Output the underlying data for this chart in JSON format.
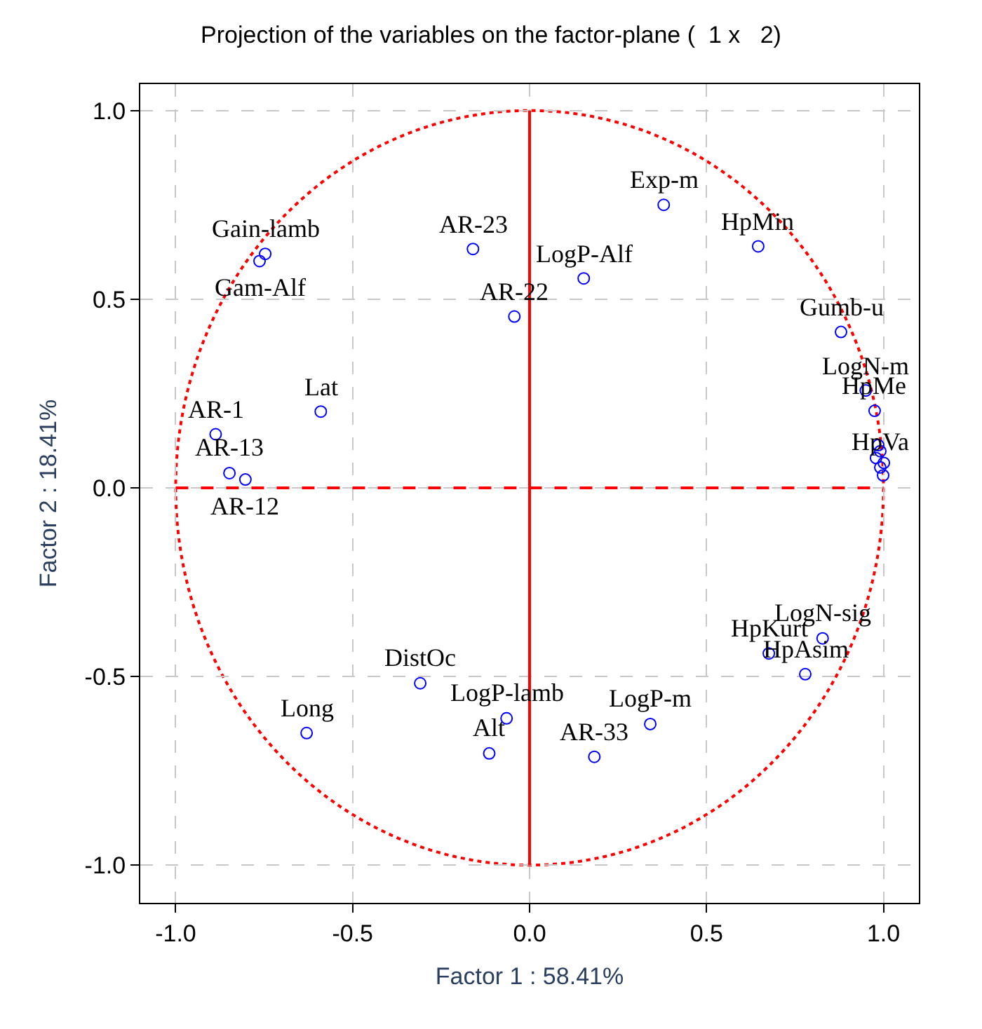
{
  "chart_data": {
    "type": "scatter",
    "title": "Projection of the variables on the factor-plane (  1 x   2)",
    "xlabel": "Factor 1 : 58.41%",
    "ylabel": "Factor 2 : 18.41%",
    "xlim": [
      -1.1,
      1.1
    ],
    "ylim": [
      -1.1,
      1.07
    ],
    "xticks": [
      {
        "value": -1,
        "label": "-1.0"
      },
      {
        "value": -0.5,
        "label": "-0.5"
      },
      {
        "value": 0,
        "label": "0.0"
      },
      {
        "value": 0.5,
        "label": "0.5"
      },
      {
        "value": 1,
        "label": "1.0"
      }
    ],
    "yticks": [
      {
        "value": -1,
        "label": "-1.0"
      },
      {
        "value": -0.5,
        "label": "-0.5"
      },
      {
        "value": 0,
        "label": "0.0"
      },
      {
        "value": 0.5,
        "label": "0.5"
      },
      {
        "value": 1,
        "label": "1.0"
      }
    ],
    "grid": true,
    "series": [
      {
        "marker": "circle",
        "color": "#0000ff",
        "x": [
          -0.763,
          -0.747,
          -0.887,
          -0.848,
          -0.803,
          -0.59,
          -0.16,
          -0.043,
          0.153,
          0.379,
          0.646,
          0.88,
          0.95,
          0.975,
          0.985,
          0.991,
          0.979,
          1.001,
          0.991,
          0.999,
          -0.309,
          -0.63,
          -0.065,
          -0.114,
          0.183,
          0.341,
          0.676,
          0.828,
          0.779
        ],
        "values": [
          0.601,
          0.62,
          0.142,
          0.039,
          0.022,
          0.202,
          0.633,
          0.454,
          0.555,
          0.75,
          0.64,
          0.413,
          0.258,
          0.204,
          0.113,
          0.097,
          0.079,
          0.066,
          0.054,
          0.033,
          -0.518,
          -0.65,
          -0.611,
          -0.704,
          -0.713,
          -0.626,
          -0.439,
          -0.399,
          -0.494
        ]
      }
    ],
    "ref_lines": [
      {
        "axis": "x",
        "value": 0,
        "color": "#ff0000",
        "line_style": "solid"
      },
      {
        "axis": "y",
        "value": 0,
        "color": "#ff0000",
        "line_style": "dashed"
      }
    ],
    "annotations": [
      {
        "text": "Gain-lamb",
        "x": -0.747,
        "y": 0.62
      },
      {
        "text": "Gam-Alf",
        "x": -0.763,
        "y": 0.601
      },
      {
        "text": "AR-1",
        "x": -0.887,
        "y": 0.142
      },
      {
        "text": "AR-13",
        "x": -0.848,
        "y": 0.039
      },
      {
        "text": "AR-12",
        "x": -0.803,
        "y": 0.022
      },
      {
        "text": "Lat",
        "x": -0.59,
        "y": 0.202
      },
      {
        "text": "AR-23",
        "x": -0.16,
        "y": 0.633
      },
      {
        "text": "AR-22",
        "x": -0.043,
        "y": 0.454
      },
      {
        "text": "LogP-Alf",
        "x": 0.153,
        "y": 0.555
      },
      {
        "text": "Exp-m",
        "x": 0.379,
        "y": 0.75
      },
      {
        "text": "HpMin",
        "x": 0.646,
        "y": 0.64
      },
      {
        "text": "Gumb-u",
        "x": 0.88,
        "y": 0.413
      },
      {
        "text": "LogN-m",
        "x": 0.95,
        "y": 0.258
      },
      {
        "text": "HpMe",
        "x": 0.975,
        "y": 0.204
      },
      {
        "text": "HpVa",
        "x": 0.991,
        "y": 0.054
      },
      {
        "text": "DistOc",
        "x": -0.309,
        "y": -0.518
      },
      {
        "text": "Long",
        "x": -0.63,
        "y": -0.65
      },
      {
        "text": "LogP-lamb",
        "x": -0.065,
        "y": -0.611
      },
      {
        "text": "Alt",
        "x": -0.114,
        "y": -0.704
      },
      {
        "text": "AR-33",
        "x": 0.183,
        "y": -0.713
      },
      {
        "text": "LogP-m",
        "x": 0.341,
        "y": -0.626
      },
      {
        "text": "HpKurt",
        "x": 0.676,
        "y": -0.439
      },
      {
        "text": "LogN-sig",
        "x": 0.828,
        "y": -0.399
      },
      {
        "text": "HpAsim",
        "x": 0.779,
        "y": -0.494
      }
    ]
  }
}
